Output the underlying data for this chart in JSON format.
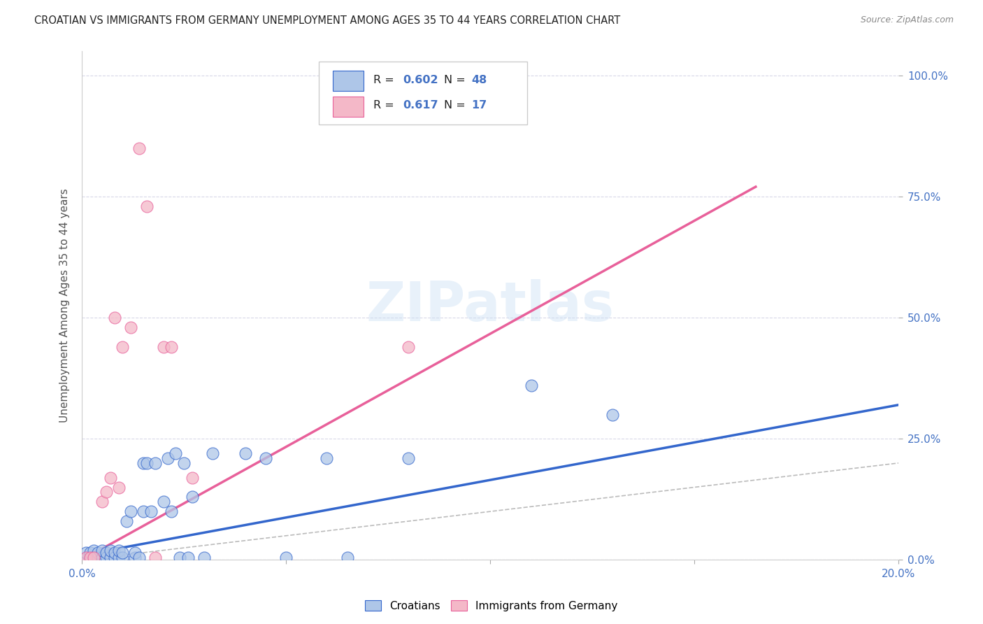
{
  "title": "CROATIAN VS IMMIGRANTS FROM GERMANY UNEMPLOYMENT AMONG AGES 35 TO 44 YEARS CORRELATION CHART",
  "source": "Source: ZipAtlas.com",
  "ylabel": "Unemployment Among Ages 35 to 44 years",
  "xmin": 0.0,
  "xmax": 0.2,
  "ymin": 0.0,
  "ymax": 1.05,
  "watermark": "ZIPatlas",
  "legend_labels": [
    "Croatians",
    "Immigrants from Germany"
  ],
  "blue_R": 0.602,
  "blue_N": 48,
  "pink_R": 0.617,
  "pink_N": 17,
  "blue_color": "#aec6e8",
  "pink_color": "#f4b8c8",
  "blue_line_color": "#3366cc",
  "pink_line_color": "#e8609a",
  "diagonal_color": "#bbbbbb",
  "blue_scatter_x": [
    0.001,
    0.001,
    0.002,
    0.002,
    0.003,
    0.003,
    0.004,
    0.004,
    0.005,
    0.005,
    0.006,
    0.006,
    0.007,
    0.007,
    0.008,
    0.008,
    0.009,
    0.009,
    0.01,
    0.01,
    0.011,
    0.012,
    0.013,
    0.013,
    0.014,
    0.015,
    0.015,
    0.016,
    0.017,
    0.018,
    0.02,
    0.021,
    0.022,
    0.023,
    0.024,
    0.025,
    0.026,
    0.027,
    0.03,
    0.032,
    0.04,
    0.045,
    0.05,
    0.06,
    0.065,
    0.08,
    0.11,
    0.13
  ],
  "blue_scatter_y": [
    0.005,
    0.015,
    0.005,
    0.015,
    0.005,
    0.02,
    0.005,
    0.015,
    0.005,
    0.02,
    0.005,
    0.015,
    0.005,
    0.02,
    0.005,
    0.015,
    0.005,
    0.02,
    0.005,
    0.015,
    0.08,
    0.1,
    0.005,
    0.015,
    0.005,
    0.1,
    0.2,
    0.2,
    0.1,
    0.2,
    0.12,
    0.21,
    0.1,
    0.22,
    0.005,
    0.2,
    0.005,
    0.13,
    0.005,
    0.22,
    0.22,
    0.21,
    0.005,
    0.21,
    0.005,
    0.21,
    0.36,
    0.3
  ],
  "pink_scatter_x": [
    0.001,
    0.002,
    0.003,
    0.005,
    0.006,
    0.007,
    0.008,
    0.009,
    0.01,
    0.012,
    0.014,
    0.016,
    0.018,
    0.02,
    0.022,
    0.027,
    0.08
  ],
  "pink_scatter_y": [
    0.005,
    0.005,
    0.005,
    0.12,
    0.14,
    0.17,
    0.5,
    0.15,
    0.44,
    0.48,
    0.85,
    0.73,
    0.005,
    0.44,
    0.44,
    0.17,
    0.44
  ],
  "blue_trendline_x": [
    0.0,
    0.2
  ],
  "blue_trendline_y": [
    0.01,
    0.32
  ],
  "pink_trendline_x": [
    0.0,
    0.165
  ],
  "pink_trendline_y": [
    0.0,
    0.77
  ],
  "ytick_positions": [
    0.0,
    0.25,
    0.5,
    0.75,
    1.0
  ],
  "ytick_labels": [
    "0.0%",
    "25.0%",
    "50.0%",
    "75.0%",
    "100.0%"
  ],
  "xtick_positions": [
    0.0,
    0.05,
    0.1,
    0.15,
    0.2
  ],
  "xtick_labels": [
    "0.0%",
    "",
    "",
    "",
    "20.0%"
  ],
  "background_color": "#ffffff",
  "grid_color": "#d8d8e8"
}
